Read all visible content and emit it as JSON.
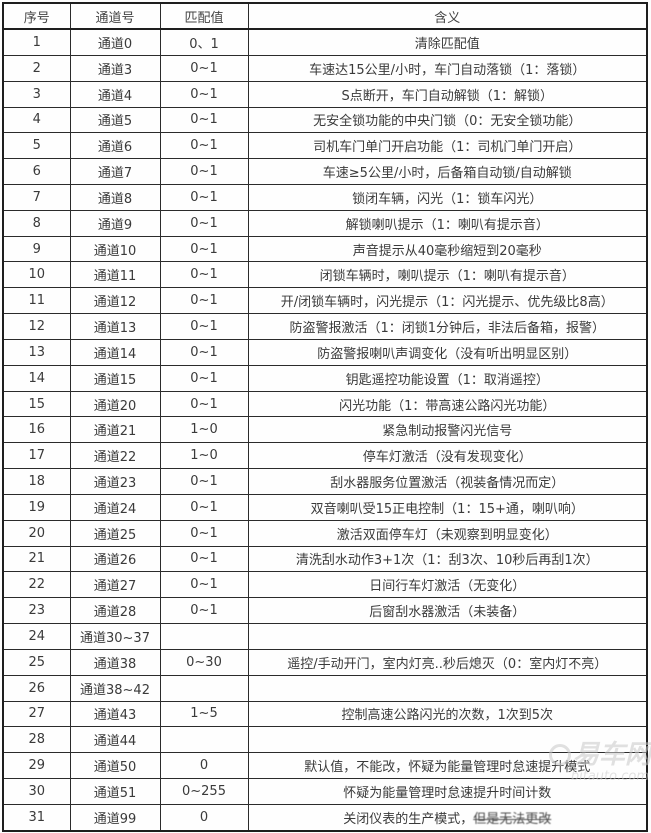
{
  "table": {
    "columns": [
      "序号",
      "通道号",
      "匹配值",
      "含义"
    ],
    "rows": [
      {
        "no": "1",
        "channel": "通道0",
        "value": "0、1",
        "meaning": "清除匹配值"
      },
      {
        "no": "2",
        "channel": "通道3",
        "value": "0~1",
        "meaning": "车速达15公里/小时，车门自动落锁（1：落锁）"
      },
      {
        "no": "3",
        "channel": "通道4",
        "value": "0~1",
        "meaning": "S点断开，车门自动解锁（1：解锁）"
      },
      {
        "no": "4",
        "channel": "通道5",
        "value": "0~1",
        "meaning": "无安全锁功能的中央门锁（0：无安全锁功能）"
      },
      {
        "no": "5",
        "channel": "通道6",
        "value": "0~1",
        "meaning": "司机车门单门开启功能（1：司机门单门开启）"
      },
      {
        "no": "6",
        "channel": "通道7",
        "value": "0~1",
        "meaning": "车速≥5公里/小时，后备箱自动锁/自动解锁"
      },
      {
        "no": "7",
        "channel": "通道8",
        "value": "0~1",
        "meaning": "锁闭车辆，闪光（1：锁车闪光）"
      },
      {
        "no": "8",
        "channel": "通道9",
        "value": "0~1",
        "meaning": "解锁喇叭提示（1：喇叭有提示音）"
      },
      {
        "no": "9",
        "channel": "通道10",
        "value": "0~1",
        "meaning": "声音提示从40毫秒缩短到20毫秒"
      },
      {
        "no": "10",
        "channel": "通道11",
        "value": "0~1",
        "meaning": "闭锁车辆时，喇叭提示（1：喇叭有提示音）"
      },
      {
        "no": "11",
        "channel": "通道12",
        "value": "0~1",
        "meaning": "开/闭锁车辆时，闪光提示（1：闪光提示、优先级比8高）"
      },
      {
        "no": "12",
        "channel": "通道13",
        "value": "0~1",
        "meaning": "防盗警报激活（1：闭锁1分钟后，非法后备箱，报警）"
      },
      {
        "no": "13",
        "channel": "通道14",
        "value": "0~1",
        "meaning": "防盗警报喇叭声调变化（没有听出明显区别）"
      },
      {
        "no": "14",
        "channel": "通道15",
        "value": "0~1",
        "meaning": "钥匙遥控功能设置（1：取消遥控）"
      },
      {
        "no": "15",
        "channel": "通道20",
        "value": "0~1",
        "meaning": "闪光功能（1：带高速公路闪光功能）"
      },
      {
        "no": "16",
        "channel": "通道21",
        "value": "1~0",
        "meaning": "紧急制动报警闪光信号"
      },
      {
        "no": "17",
        "channel": "通道22",
        "value": "1~0",
        "meaning": "停车灯激活（没有发现变化）"
      },
      {
        "no": "18",
        "channel": "通道23",
        "value": "0~1",
        "meaning": "刮水器服务位置激活（视装备情况而定）"
      },
      {
        "no": "19",
        "channel": "通道24",
        "value": "0~1",
        "meaning": "双音喇叭受15正电控制（1：15+通，喇叭响）"
      },
      {
        "no": "20",
        "channel": "通道25",
        "value": "0~1",
        "meaning": "激活双面停车灯（未观察到明显变化）"
      },
      {
        "no": "21",
        "channel": "通道26",
        "value": "0~1",
        "meaning": "清洗刮水动作3+1次（1：刮3次、10秒后再刮1次）"
      },
      {
        "no": "22",
        "channel": "通道27",
        "value": "0~1",
        "meaning": "日间行车灯激活（无变化）"
      },
      {
        "no": "23",
        "channel": "通道28",
        "value": "0~1",
        "meaning": "后窗刮水器激活（未装备）"
      },
      {
        "no": "24",
        "channel": "通道30~37",
        "value": "",
        "meaning": ""
      },
      {
        "no": "25",
        "channel": "通道38",
        "value": "0~30",
        "meaning": "遥控/手动开门，室内灯亮..秒后熄灭（0：室内灯不亮）"
      },
      {
        "no": "26",
        "channel": "通道38~42",
        "value": "",
        "meaning": ""
      },
      {
        "no": "27",
        "channel": "通道43",
        "value": "1~5",
        "meaning": "控制高速公路闪光的次数，1次到5次"
      },
      {
        "no": "28",
        "channel": "通道44",
        "value": "",
        "meaning": ""
      },
      {
        "no": "29",
        "channel": "通道50",
        "value": "0",
        "meaning": "默认值，不能改，怀疑为能量管理时怠速提升模式"
      },
      {
        "no": "30",
        "channel": "通道51",
        "value": "0~255",
        "meaning": "怀疑为能量管理时怠速提升时间计数"
      },
      {
        "no": "31",
        "channel": "通道99",
        "value": "0",
        "meaning": "关闭仪表的生产模式，",
        "meaning_struck": "但是无法更改"
      }
    ]
  },
  "watermark": {
    "site_name": "易车网",
    "site_domain": "bitauto.com"
  }
}
